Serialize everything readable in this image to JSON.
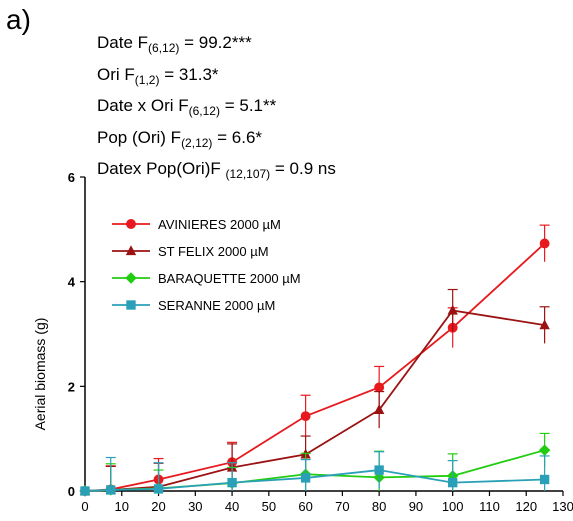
{
  "panel_label": "a)",
  "stats": [
    {
      "pre": "Date  F",
      "sub": "(6,12)",
      "post": " = 99.2***"
    },
    {
      "pre": "Ori F",
      "sub": "(1,2)",
      "post": " = 31.3*"
    },
    {
      "pre": "Date x Ori F",
      "sub": "(6,12)",
      "post": " = 5.1**"
    },
    {
      "pre": "Pop (Ori) F",
      "sub": "(2,12)",
      "post": " = 6.6*"
    },
    {
      "pre": "Datex Pop(Ori)F ",
      "sub": "(12,107)",
      "post": " = 0.9 ns"
    }
  ],
  "chart_data": {
    "type": "line",
    "title": "",
    "xlabel": "",
    "ylabel": "Aerial biomass (g)",
    "xlim": [
      0,
      130
    ],
    "ylim": [
      0,
      6
    ],
    "x_ticks": [
      0,
      10,
      20,
      30,
      40,
      50,
      60,
      70,
      80,
      90,
      100,
      110,
      120,
      130
    ],
    "y_ticks": [
      0,
      2,
      4,
      6
    ],
    "legend_position": "top-left",
    "grid": false,
    "series": [
      {
        "name": "AVINIERES 2000 µM",
        "color": "#e8191e",
        "marker": "circle",
        "x": [
          0,
          7,
          20,
          40,
          60,
          80,
          100,
          125
        ],
        "y": [
          0.0,
          0.03,
          0.22,
          0.55,
          1.43,
          1.98,
          3.12,
          4.73
        ],
        "err": [
          0.0,
          0.45,
          0.4,
          0.38,
          0.4,
          0.4,
          0.38,
          0.35
        ]
      },
      {
        "name": "ST FELIX  2000 µM",
        "color": "#9b1212",
        "marker": "triangle",
        "x": [
          0,
          7,
          20,
          40,
          60,
          80,
          100,
          125
        ],
        "y": [
          0.0,
          0.02,
          0.08,
          0.45,
          0.7,
          1.55,
          3.45,
          3.17
        ],
        "err": [
          0.0,
          0.45,
          0.45,
          0.45,
          0.35,
          0.35,
          0.4,
          0.35
        ]
      },
      {
        "name": "BARAQUETTE 2000 µM",
        "color": "#22cc11",
        "marker": "diamond",
        "x": [
          0,
          7,
          20,
          40,
          60,
          80,
          100,
          125
        ],
        "y": [
          0.0,
          0.02,
          0.05,
          0.15,
          0.32,
          0.26,
          0.29,
          0.78
        ],
        "err": [
          0.0,
          0.5,
          0.35,
          0.3,
          0.4,
          0.5,
          0.42,
          0.32
        ]
      },
      {
        "name": "SERANNE 2000 µM",
        "color": "#2aa0b8",
        "marker": "square",
        "x": [
          0,
          7,
          20,
          40,
          60,
          80,
          100,
          125
        ],
        "y": [
          0.0,
          0.02,
          0.04,
          0.16,
          0.25,
          0.4,
          0.16,
          0.22
        ],
        "err": [
          0.0,
          0.62,
          0.5,
          0.38,
          0.35,
          0.35,
          0.42,
          0.45
        ]
      }
    ]
  }
}
